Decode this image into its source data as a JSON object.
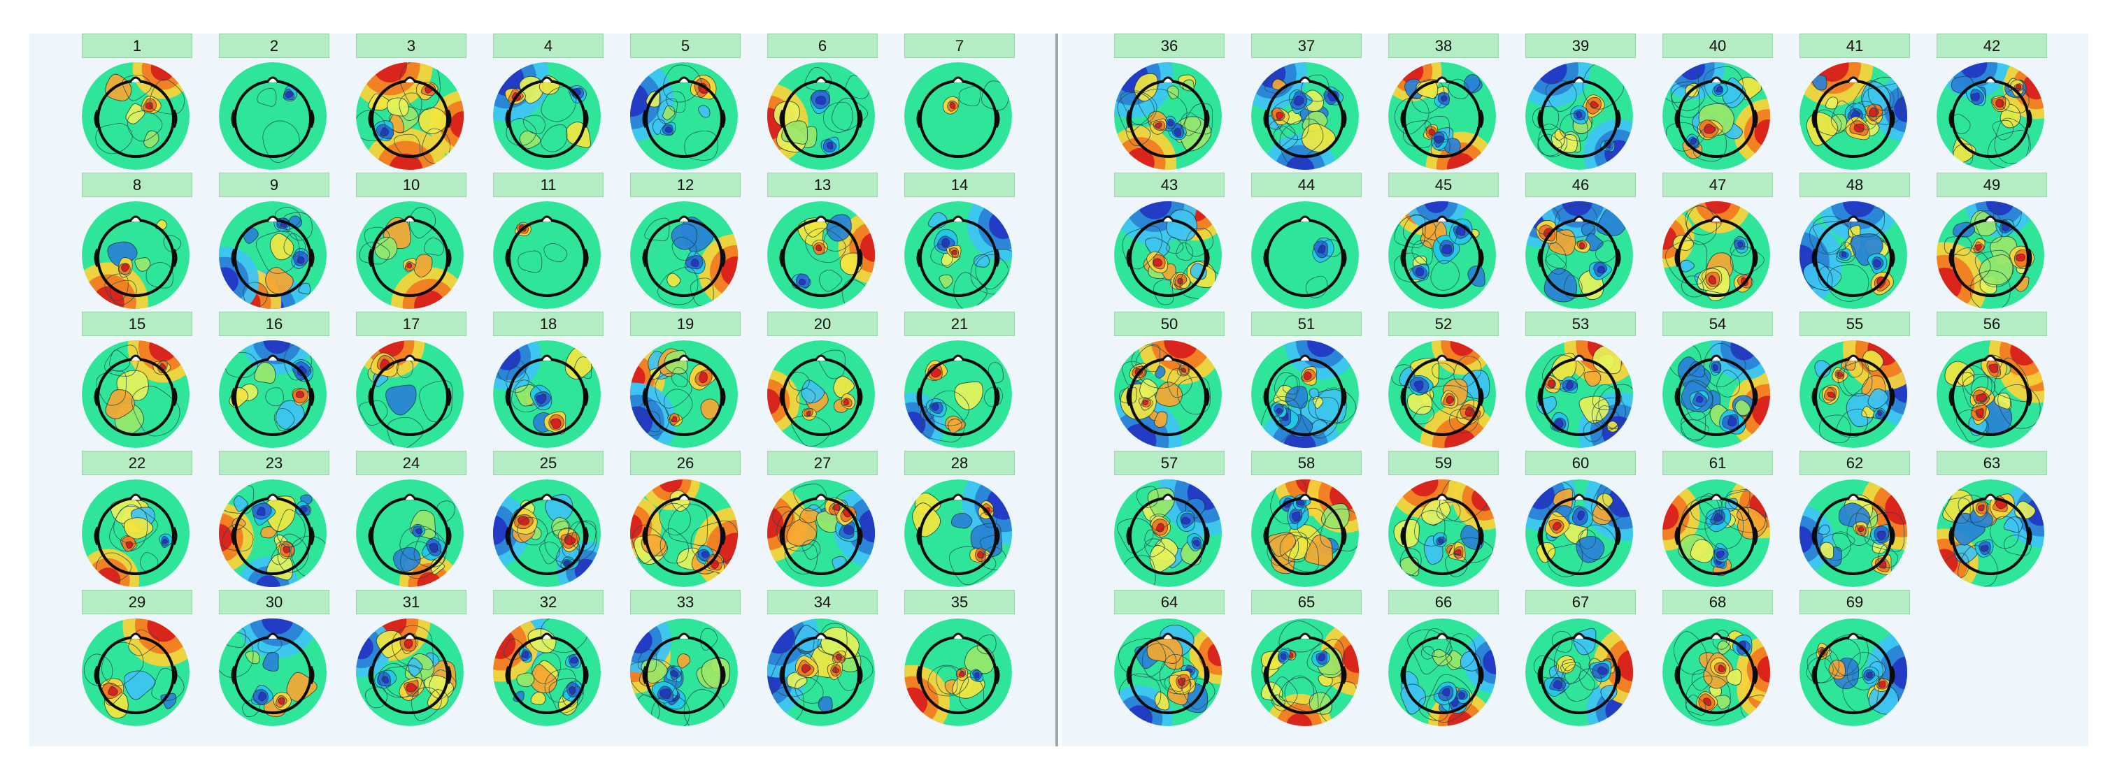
{
  "colors": {
    "background": "#eef5fb",
    "label_background": "#b4ecc4",
    "base_field": "#2fe59a",
    "positive_peak": "#d8201c",
    "negative_peak": "#2338c4"
  },
  "icon_names": [
    "head-icon",
    "nose-icon",
    "ear-icon"
  ],
  "panels": [
    {
      "name": "left",
      "components": [
        {
          "label": "1",
          "style": "a"
        },
        {
          "label": "2",
          "style": "d"
        },
        {
          "label": "3",
          "style": "e"
        },
        {
          "label": "4",
          "style": "b"
        },
        {
          "label": "5",
          "style": "b"
        },
        {
          "label": "6",
          "style": "b"
        },
        {
          "label": "7",
          "style": "d"
        },
        {
          "label": "8",
          "style": "a"
        },
        {
          "label": "9",
          "style": "e"
        },
        {
          "label": "10",
          "style": "a"
        },
        {
          "label": "11",
          "style": "d"
        },
        {
          "label": "12",
          "style": "a"
        },
        {
          "label": "13",
          "style": "b"
        },
        {
          "label": "14",
          "style": "b"
        },
        {
          "label": "15",
          "style": "a"
        },
        {
          "label": "16",
          "style": "b"
        },
        {
          "label": "17",
          "style": "a"
        },
        {
          "label": "18",
          "style": "b"
        },
        {
          "label": "19",
          "style": "e"
        },
        {
          "label": "20",
          "style": "b"
        },
        {
          "label": "21",
          "style": "b"
        },
        {
          "label": "22",
          "style": "b"
        },
        {
          "label": "23",
          "style": "c"
        },
        {
          "label": "24",
          "style": "b"
        },
        {
          "label": "25",
          "style": "c"
        },
        {
          "label": "26",
          "style": "e"
        },
        {
          "label": "27",
          "style": "c"
        },
        {
          "label": "28",
          "style": "b"
        },
        {
          "label": "29",
          "style": "a"
        },
        {
          "label": "30",
          "style": "b"
        },
        {
          "label": "31",
          "style": "c"
        },
        {
          "label": "32",
          "style": "c"
        },
        {
          "label": "33",
          "style": "c"
        },
        {
          "label": "34",
          "style": "c"
        },
        {
          "label": "35",
          "style": "b"
        }
      ]
    },
    {
      "name": "right",
      "components": [
        {
          "label": "36",
          "style": "c"
        },
        {
          "label": "37",
          "style": "c"
        },
        {
          "label": "38",
          "style": "c"
        },
        {
          "label": "39",
          "style": "c"
        },
        {
          "label": "40",
          "style": "c"
        },
        {
          "label": "41",
          "style": "c"
        },
        {
          "label": "42",
          "style": "c"
        },
        {
          "label": "43",
          "style": "c"
        },
        {
          "label": "44",
          "style": "d"
        },
        {
          "label": "45",
          "style": "c"
        },
        {
          "label": "46",
          "style": "c"
        },
        {
          "label": "47",
          "style": "c"
        },
        {
          "label": "48",
          "style": "c"
        },
        {
          "label": "49",
          "style": "c"
        },
        {
          "label": "50",
          "style": "c"
        },
        {
          "label": "51",
          "style": "c"
        },
        {
          "label": "52",
          "style": "c"
        },
        {
          "label": "53",
          "style": "c"
        },
        {
          "label": "54",
          "style": "c"
        },
        {
          "label": "55",
          "style": "c"
        },
        {
          "label": "56",
          "style": "c"
        },
        {
          "label": "57",
          "style": "c"
        },
        {
          "label": "58",
          "style": "c"
        },
        {
          "label": "59",
          "style": "c"
        },
        {
          "label": "60",
          "style": "c"
        },
        {
          "label": "61",
          "style": "c"
        },
        {
          "label": "62",
          "style": "c"
        },
        {
          "label": "63",
          "style": "c"
        },
        {
          "label": "64",
          "style": "c"
        },
        {
          "label": "65",
          "style": "c"
        },
        {
          "label": "66",
          "style": "c"
        },
        {
          "label": "67",
          "style": "c"
        },
        {
          "label": "68",
          "style": "c"
        },
        {
          "label": "69",
          "style": "c"
        }
      ]
    }
  ]
}
